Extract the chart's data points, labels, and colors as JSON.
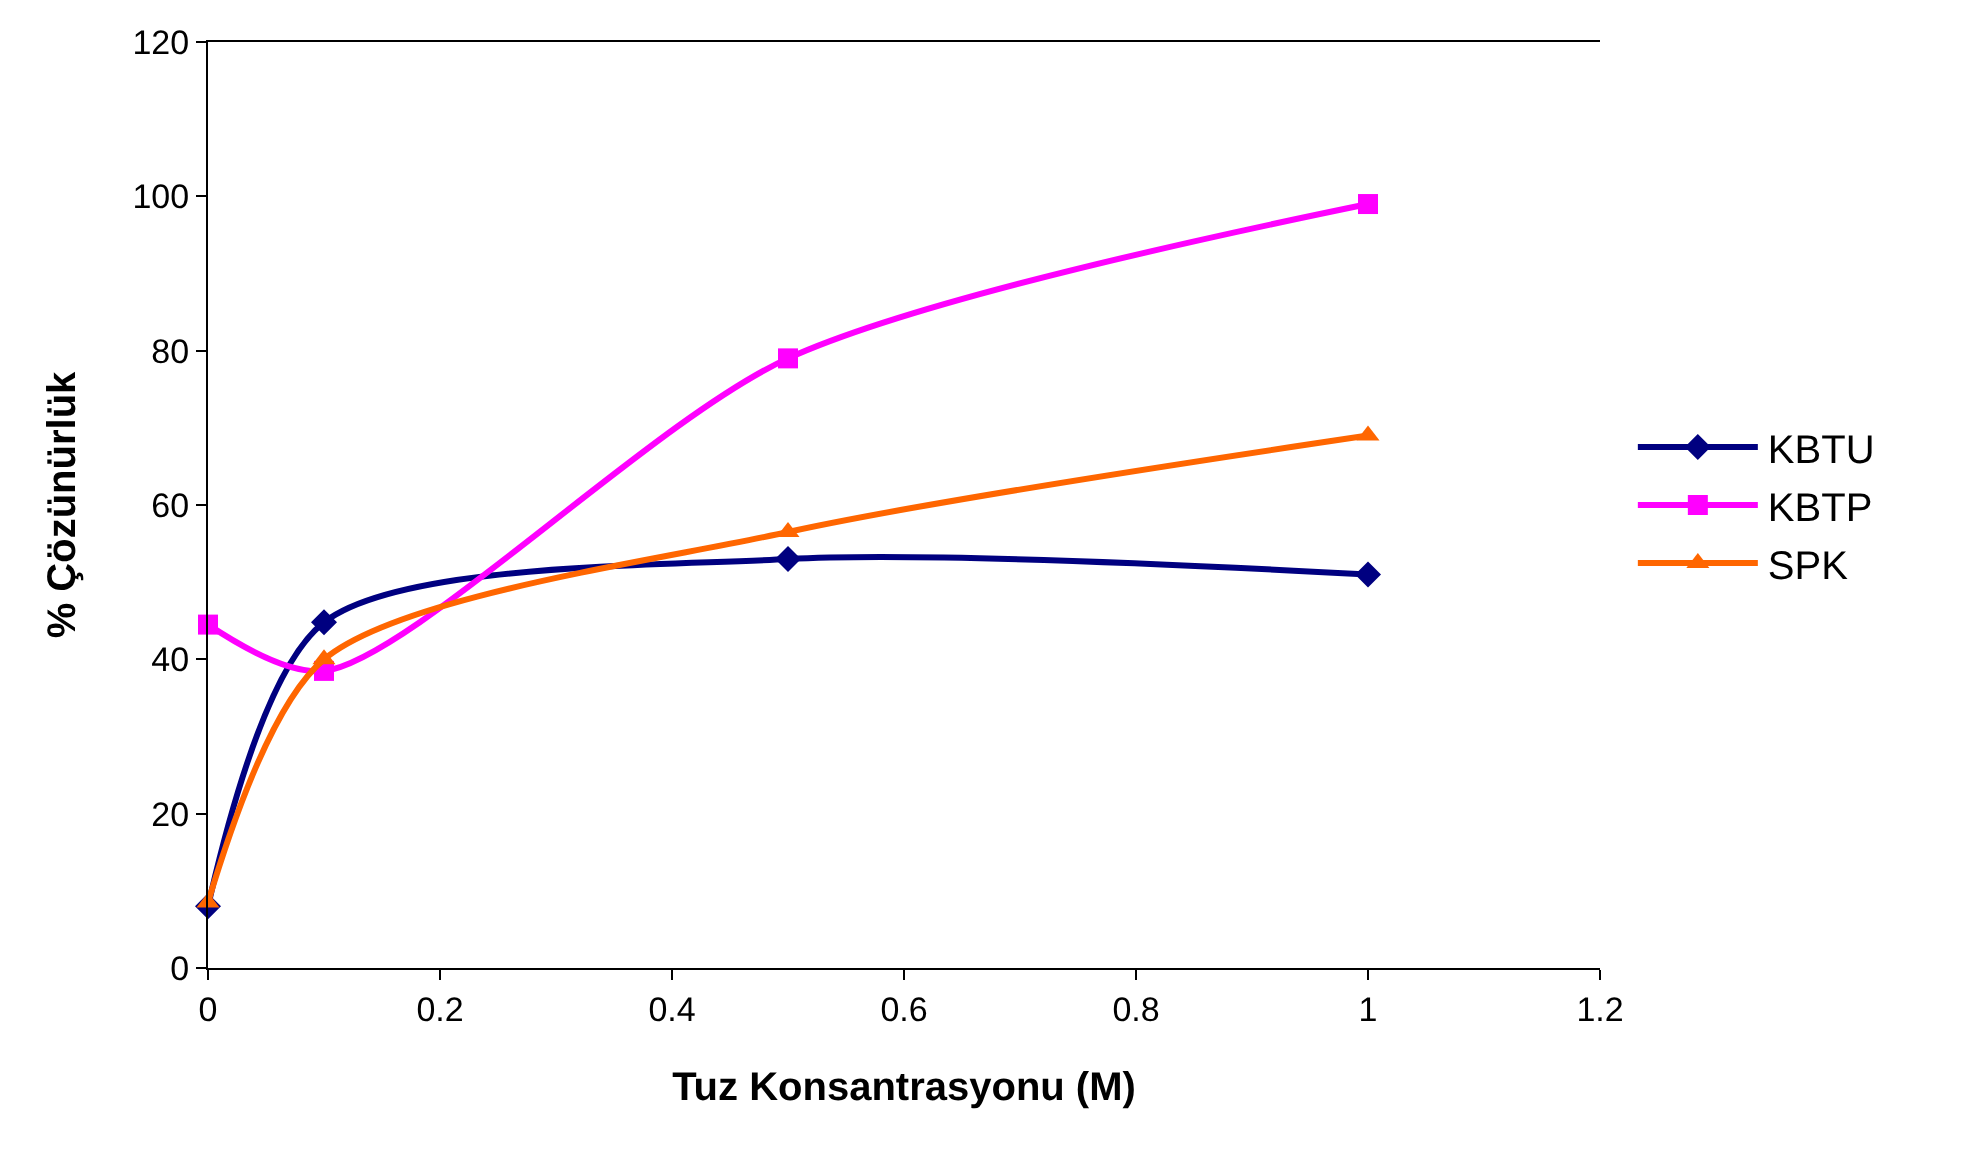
{
  "chart_data": {
    "type": "line",
    "xlabel": "Tuz Konsantrasyonu (M)",
    "ylabel": "% Çözünürlük",
    "x": [
      0,
      0.1,
      0.5,
      1
    ],
    "series": [
      {
        "name": "KBTU",
        "color": "#000080",
        "marker": "diamond",
        "values": [
          8,
          44.8,
          53,
          51
        ]
      },
      {
        "name": "KBTP",
        "color": "#ff00ff",
        "marker": "square",
        "values": [
          44.5,
          38.5,
          79,
          99
        ]
      },
      {
        "name": "SPK",
        "color": "#ff6600",
        "marker": "triangle",
        "values": [
          8.5,
          40,
          56.5,
          69
        ]
      }
    ],
    "xlim": [
      0,
      1.2
    ],
    "xticks": [
      0,
      0.2,
      0.4,
      0.6,
      0.8,
      1,
      1.2
    ],
    "ylim": [
      0,
      120
    ],
    "yticks": [
      0,
      20,
      40,
      60,
      80,
      100,
      120
    ],
    "legend": "right",
    "line_style": "solid"
  }
}
